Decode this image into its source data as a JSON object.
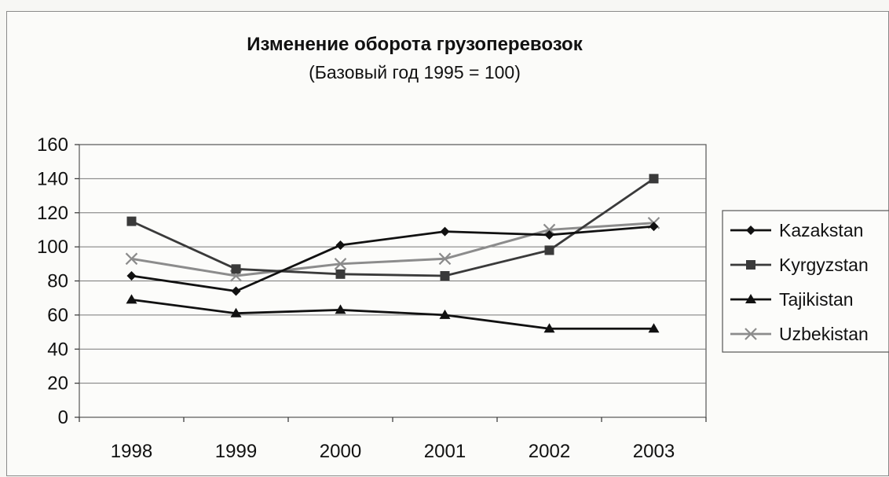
{
  "chart_data": {
    "type": "line",
    "title": "Изменение оборота грузоперевозок",
    "subtitle": "(Базовый год 1995 = 100)",
    "xlabel": "",
    "ylabel": "",
    "categories": [
      "1998",
      "1999",
      "2000",
      "2001",
      "2002",
      "2003"
    ],
    "ylim": [
      0,
      160
    ],
    "yticks": [
      0,
      20,
      40,
      60,
      80,
      100,
      120,
      140,
      160
    ],
    "grid": true,
    "legend_position": "right",
    "series": [
      {
        "name": "Kazakstan",
        "marker": "diamond",
        "color": "#111111",
        "values": [
          83,
          74,
          101,
          109,
          107,
          112
        ]
      },
      {
        "name": "Kyrgyzstan",
        "marker": "square",
        "color": "#3a3a3a",
        "values": [
          115,
          87,
          84,
          83,
          98,
          140
        ]
      },
      {
        "name": "Tajikistan",
        "marker": "triangle",
        "color": "#111111",
        "values": [
          69,
          61,
          63,
          60,
          52,
          52
        ]
      },
      {
        "name": "Uzbekistan",
        "marker": "x",
        "color": "#8c8c8c",
        "values": [
          93,
          83,
          90,
          93,
          110,
          114
        ]
      }
    ]
  }
}
